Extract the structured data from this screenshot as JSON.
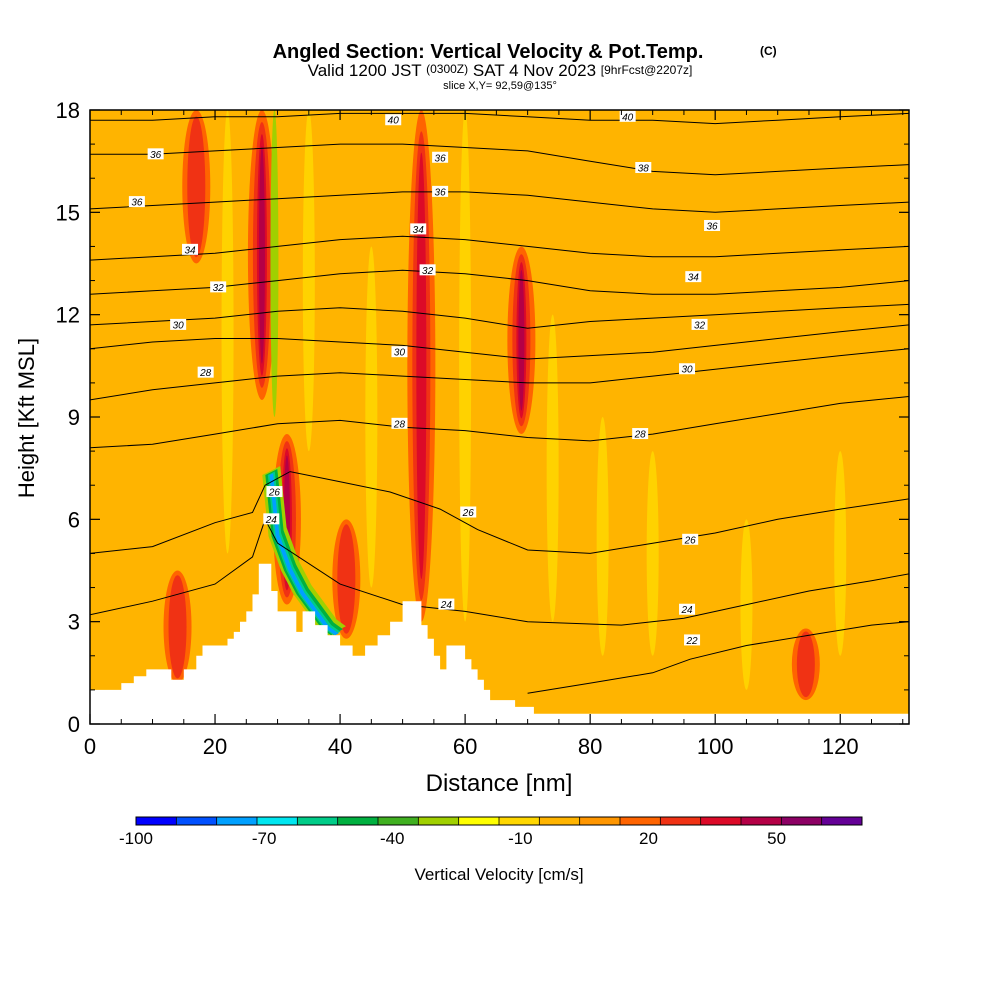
{
  "chart_data": {
    "type": "heatmap",
    "title": "Angled Section: Vertical Velocity & Pot.Temp.",
    "title_units": "(C)",
    "subtitle_prefix": "Valid 1200 JST",
    "subtitle_utc": "(0300Z)",
    "subtitle_date": "SAT 4 Nov 2023",
    "subtitle_fcst": "[9hrFcst@2207z]",
    "slice_label": "slice X,Y= 92,59@135°",
    "xlabel": "Distance [nm]",
    "ylabel": "Height [Kft MSL]",
    "xlim": [
      0,
      131
    ],
    "ylim": [
      0,
      18
    ],
    "x_ticks": [
      "0",
      "20",
      "40",
      "60",
      "80",
      "100",
      "120"
    ],
    "y_ticks": [
      "0",
      "3",
      "6",
      "9",
      "12",
      "15",
      "18"
    ],
    "colorbar": {
      "label": "Vertical Velocity [cm/s]",
      "tick_labels": [
        "-100",
        "-70",
        "-40",
        "-10",
        "20",
        "50"
      ],
      "tick_values": [
        -100,
        -70,
        -40,
        -10,
        20,
        50
      ],
      "range": [
        -100,
        70
      ],
      "colors": [
        "#0000ff",
        "#0050ff",
        "#00a0ff",
        "#00e6f0",
        "#00cc88",
        "#00b040",
        "#40b020",
        "#a0d000",
        "#ffff00",
        "#ffd700",
        "#ffb400",
        "#ff9600",
        "#ff6400",
        "#f03214",
        "#dc0a28",
        "#b40046",
        "#8c0064",
        "#640096"
      ]
    },
    "background_value_color": "#ffb400",
    "updraft_columns": [
      {
        "x": 14,
        "y0": 1.2,
        "y1": 4.5,
        "value": 30
      },
      {
        "x": 17,
        "y0": 13.5,
        "y1": 18,
        "value": 30
      },
      {
        "x": 27.5,
        "y0": 9.5,
        "y1": 18,
        "value": 45
      },
      {
        "x": 31.5,
        "y0": 3.5,
        "y1": 8.5,
        "value": 50
      },
      {
        "x": 41,
        "y0": 2.5,
        "y1": 6,
        "value": 30
      },
      {
        "x": 53,
        "y0": 3,
        "y1": 18,
        "value": 40
      },
      {
        "x": 69,
        "y0": 8.5,
        "y1": 14,
        "value": 45
      },
      {
        "x": 114.5,
        "y0": 0.7,
        "y1": 2.8,
        "value": 25
      }
    ],
    "downdraft_band": [
      {
        "x": 29,
        "y": 7.3
      },
      {
        "x": 30,
        "y": 5.5
      },
      {
        "x": 32,
        "y": 4.5
      },
      {
        "x": 34,
        "y": 3.8
      },
      {
        "x": 36,
        "y": 3.3
      },
      {
        "x": 38,
        "y": 2.8
      },
      {
        "x": 39.5,
        "y": 2.6
      }
    ],
    "downdraft_min": -80,
    "terrain_kft": [
      [
        0,
        1.0
      ],
      [
        5,
        1.0
      ],
      [
        5,
        1.2
      ],
      [
        7,
        1.2
      ],
      [
        7,
        1.4
      ],
      [
        9,
        1.4
      ],
      [
        9,
        1.6
      ],
      [
        13,
        1.6
      ],
      [
        13,
        1.3
      ],
      [
        15,
        1.3
      ],
      [
        15,
        1.6
      ],
      [
        17,
        1.6
      ],
      [
        17,
        2.0
      ],
      [
        18,
        2.0
      ],
      [
        18,
        2.3
      ],
      [
        22,
        2.3
      ],
      [
        22,
        2.5
      ],
      [
        23,
        2.5
      ],
      [
        23,
        2.7
      ],
      [
        24,
        2.7
      ],
      [
        24,
        3.0
      ],
      [
        25,
        3.0
      ],
      [
        25,
        3.3
      ],
      [
        26,
        3.3
      ],
      [
        26,
        3.8
      ],
      [
        27,
        3.8
      ],
      [
        27,
        4.7
      ],
      [
        29,
        4.7
      ],
      [
        29,
        3.9
      ],
      [
        30,
        3.9
      ],
      [
        30,
        3.3
      ],
      [
        33,
        3.3
      ],
      [
        33,
        2.7
      ],
      [
        34,
        2.7
      ],
      [
        34,
        3.3
      ],
      [
        36,
        3.3
      ],
      [
        36,
        2.9
      ],
      [
        38,
        2.9
      ],
      [
        38,
        2.6
      ],
      [
        40,
        2.6
      ],
      [
        40,
        2.3
      ],
      [
        42,
        2.3
      ],
      [
        42,
        2.0
      ],
      [
        44,
        2.0
      ],
      [
        44,
        2.3
      ],
      [
        46,
        2.3
      ],
      [
        46,
        2.6
      ],
      [
        48,
        2.6
      ],
      [
        48,
        3.0
      ],
      [
        50,
        3.0
      ],
      [
        50,
        3.6
      ],
      [
        53,
        3.6
      ],
      [
        53,
        2.9
      ],
      [
        54,
        2.9
      ],
      [
        54,
        2.5
      ],
      [
        55,
        2.5
      ],
      [
        55,
        2.0
      ],
      [
        56,
        2.0
      ],
      [
        56,
        1.6
      ],
      [
        57,
        1.6
      ],
      [
        57,
        2.3
      ],
      [
        60,
        2.3
      ],
      [
        60,
        1.9
      ],
      [
        61,
        1.9
      ],
      [
        61,
        1.6
      ],
      [
        62,
        1.6
      ],
      [
        62,
        1.3
      ],
      [
        63,
        1.3
      ],
      [
        63,
        1.0
      ],
      [
        64,
        1.0
      ],
      [
        64,
        0.7
      ],
      [
        68,
        0.7
      ],
      [
        68,
        0.5
      ],
      [
        71,
        0.5
      ],
      [
        71,
        0.3
      ],
      [
        131,
        0.3
      ]
    ],
    "isotherms": [
      {
        "label": "22",
        "points": [
          [
            70,
            0.9
          ],
          [
            80,
            1.2
          ],
          [
            90,
            1.5
          ],
          [
            96,
            1.9
          ],
          [
            105,
            2.3
          ],
          [
            115,
            2.6
          ],
          [
            125,
            2.9
          ],
          [
            131,
            3.0
          ]
        ],
        "label_at": [
          96.3,
          2.45
        ]
      },
      {
        "label": "24",
        "points": [
          [
            0,
            3.2
          ],
          [
            10,
            3.6
          ],
          [
            20,
            4.1
          ],
          [
            26,
            4.9
          ],
          [
            28,
            6.0
          ],
          [
            30,
            5.3
          ],
          [
            40,
            4.1
          ],
          [
            50,
            3.5
          ],
          [
            60,
            3.3
          ],
          [
            70,
            3.0
          ],
          [
            85,
            2.9
          ],
          [
            95,
            3.1
          ],
          [
            105,
            3.5
          ],
          [
            115,
            3.9
          ],
          [
            125,
            4.2
          ],
          [
            131,
            4.4
          ]
        ],
        "label_at": [
          95.5,
          3.35
        ]
      },
      {
        "label": "26",
        "points": [
          [
            0,
            5.0
          ],
          [
            10,
            5.2
          ],
          [
            20,
            5.9
          ],
          [
            26,
            6.2
          ],
          [
            28,
            7.0
          ],
          [
            32,
            7.4
          ],
          [
            40,
            7.1
          ],
          [
            48,
            6.8
          ],
          [
            56,
            6.3
          ],
          [
            62,
            5.7
          ],
          [
            70,
            5.1
          ],
          [
            80,
            5.0
          ],
          [
            90,
            5.3
          ],
          [
            100,
            5.6
          ],
          [
            110,
            6.0
          ],
          [
            120,
            6.3
          ],
          [
            131,
            6.6
          ]
        ],
        "label_at": [
          96,
          5.4
        ]
      },
      {
        "label": "28",
        "points": [
          [
            0,
            8.1
          ],
          [
            10,
            8.2
          ],
          [
            20,
            8.5
          ],
          [
            30,
            8.8
          ],
          [
            40,
            8.9
          ],
          [
            50,
            8.7
          ],
          [
            60,
            8.6
          ],
          [
            70,
            8.4
          ],
          [
            80,
            8.3
          ],
          [
            90,
            8.5
          ],
          [
            100,
            8.8
          ],
          [
            110,
            9.1
          ],
          [
            120,
            9.4
          ],
          [
            131,
            9.6
          ]
        ],
        "label_at": [
          88,
          8.5
        ]
      },
      {
        "label": "28",
        "points": [
          [
            0,
            9.5
          ],
          [
            10,
            9.8
          ],
          [
            20,
            10.0
          ],
          [
            30,
            10.2
          ],
          [
            40,
            10.3
          ],
          [
            50,
            10.2
          ],
          [
            60,
            10.1
          ],
          [
            70,
            10.0
          ],
          [
            80,
            10.0
          ],
          [
            90,
            10.2
          ],
          [
            100,
            10.4
          ],
          [
            110,
            10.6
          ],
          [
            120,
            10.8
          ],
          [
            131,
            11.0
          ]
        ],
        "label_at": [
          18.5,
          10.3
        ]
      },
      {
        "label": "30",
        "points": [
          [
            0,
            11.0
          ],
          [
            10,
            11.2
          ],
          [
            20,
            11.3
          ],
          [
            30,
            11.3
          ],
          [
            40,
            11.2
          ],
          [
            50,
            11.1
          ],
          [
            60,
            10.9
          ],
          [
            70,
            10.7
          ],
          [
            80,
            10.8
          ],
          [
            90,
            10.9
          ],
          [
            100,
            11.1
          ],
          [
            110,
            11.3
          ],
          [
            120,
            11.5
          ],
          [
            131,
            11.7
          ]
        ],
        "label_at": [
          95.5,
          10.4
        ]
      },
      {
        "label": "30",
        "points": [
          [
            0,
            11.7
          ],
          [
            10,
            11.8
          ],
          [
            20,
            11.9
          ],
          [
            30,
            12.1
          ],
          [
            40,
            12.2
          ],
          [
            50,
            12.1
          ],
          [
            60,
            11.9
          ],
          [
            70,
            11.6
          ],
          [
            80,
            11.8
          ],
          [
            90,
            11.9
          ],
          [
            100,
            12.0
          ],
          [
            110,
            12.1
          ],
          [
            120,
            12.2
          ],
          [
            131,
            12.3
          ]
        ],
        "label_at": [
          14.1,
          11.7
        ]
      },
      {
        "label": "32",
        "points": [
          [
            0,
            12.6
          ],
          [
            10,
            12.7
          ],
          [
            20,
            12.8
          ],
          [
            30,
            13.0
          ],
          [
            40,
            13.2
          ],
          [
            50,
            13.3
          ],
          [
            60,
            13.2
          ],
          [
            70,
            13.0
          ],
          [
            80,
            12.7
          ],
          [
            90,
            12.6
          ],
          [
            100,
            12.6
          ],
          [
            110,
            12.7
          ],
          [
            120,
            12.8
          ],
          [
            131,
            13.0
          ]
        ],
        "label_at": [
          20.5,
          12.8
        ]
      },
      {
        "label": "34",
        "points": [
          [
            0,
            13.6
          ],
          [
            10,
            13.7
          ],
          [
            20,
            13.8
          ],
          [
            30,
            14.0
          ],
          [
            40,
            14.2
          ],
          [
            50,
            14.3
          ],
          [
            60,
            14.2
          ],
          [
            70,
            14.0
          ],
          [
            80,
            13.8
          ],
          [
            90,
            13.7
          ],
          [
            100,
            13.7
          ],
          [
            110,
            13.8
          ],
          [
            120,
            13.9
          ],
          [
            131,
            14.0
          ]
        ],
        "label_at": [
          16,
          13.9
        ]
      },
      {
        "label": "36",
        "points": [
          [
            0,
            15.1
          ],
          [
            10,
            15.2
          ],
          [
            20,
            15.3
          ],
          [
            30,
            15.4
          ],
          [
            40,
            15.5
          ],
          [
            50,
            15.6
          ],
          [
            60,
            15.6
          ],
          [
            70,
            15.5
          ],
          [
            80,
            15.3
          ],
          [
            90,
            15.1
          ],
          [
            100,
            15.0
          ],
          [
            110,
            15.1
          ],
          [
            120,
            15.2
          ],
          [
            131,
            15.3
          ]
        ],
        "label_at": [
          7.5,
          15.3
        ]
      },
      {
        "label": "38",
        "points": [
          [
            0,
            16.7
          ],
          [
            10,
            16.7
          ],
          [
            20,
            16.8
          ],
          [
            30,
            16.9
          ],
          [
            40,
            17.0
          ],
          [
            50,
            17.0
          ],
          [
            60,
            16.9
          ],
          [
            70,
            16.8
          ],
          [
            80,
            16.5
          ],
          [
            90,
            16.2
          ],
          [
            100,
            16.1
          ],
          [
            110,
            16.2
          ],
          [
            120,
            16.3
          ],
          [
            131,
            16.4
          ]
        ],
        "label_at": [
          88.5,
          16.3
        ]
      },
      {
        "label": "40",
        "points": [
          [
            0,
            17.7
          ],
          [
            10,
            17.7
          ],
          [
            20,
            17.8
          ],
          [
            30,
            17.8
          ],
          [
            40,
            17.9
          ],
          [
            50,
            17.9
          ],
          [
            60,
            17.9
          ],
          [
            70,
            17.8
          ],
          [
            80,
            17.7
          ],
          [
            90,
            17.7
          ],
          [
            100,
            17.6
          ],
          [
            110,
            17.7
          ],
          [
            120,
            17.8
          ],
          [
            131,
            17.9
          ]
        ],
        "label_at": [
          48.5,
          17.7
        ]
      }
    ],
    "extra_contour_labels": [
      {
        "label": "36",
        "x": 10.5,
        "y": 16.7
      },
      {
        "label": "36",
        "x": 56,
        "y": 16.6
      },
      {
        "label": "36",
        "x": 56,
        "y": 15.6
      },
      {
        "label": "34",
        "x": 52.5,
        "y": 14.5
      },
      {
        "label": "32",
        "x": 54,
        "y": 13.3
      },
      {
        "label": "34",
        "x": 96.5,
        "y": 13.1
      },
      {
        "label": "32",
        "x": 97.5,
        "y": 11.7
      },
      {
        "label": "30",
        "x": 49.5,
        "y": 10.9
      },
      {
        "label": "28",
        "x": 49.5,
        "y": 8.8
      },
      {
        "label": "26",
        "x": 60.5,
        "y": 6.2
      },
      {
        "label": "24",
        "x": 57,
        "y": 3.5
      },
      {
        "label": "26",
        "x": 29.5,
        "y": 6.8
      },
      {
        "label": "24",
        "x": 29,
        "y": 6.0
      },
      {
        "label": "40",
        "x": 86,
        "y": 17.8
      },
      {
        "label": "36",
        "x": 99.5,
        "y": 14.6
      }
    ]
  }
}
